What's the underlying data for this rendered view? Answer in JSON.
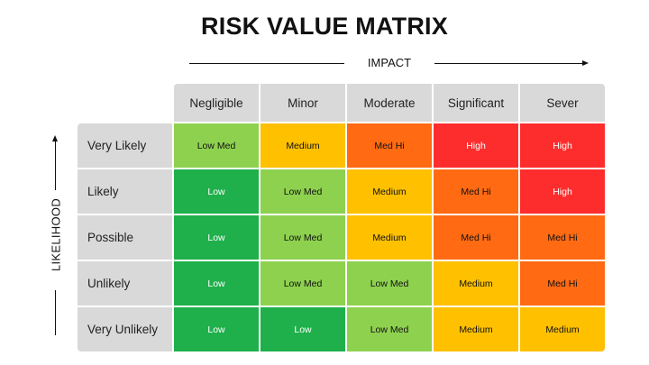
{
  "title": "RISK VALUE MATRIX",
  "impact_label": "IMPACT",
  "likelihood_label": "LIKELIHOOD",
  "columns": [
    "Negligible",
    "Minor",
    "Moderate",
    "Significant",
    "Sever"
  ],
  "rows": [
    {
      "label": "Very Likely",
      "cells": [
        "Low Med",
        "Medium",
        "Med Hi",
        "High",
        "High"
      ]
    },
    {
      "label": "Likely",
      "cells": [
        "Low",
        "Low Med",
        "Medium",
        "Med Hi",
        "High"
      ]
    },
    {
      "label": "Possible",
      "cells": [
        "Low",
        "Low Med",
        "Medium",
        "Med Hi",
        "Med Hi"
      ]
    },
    {
      "label": "Unlikely",
      "cells": [
        "Low",
        "Low Med",
        "Low Med",
        "Medium",
        "Med Hi"
      ]
    },
    {
      "label": "Very Unlikely",
      "cells": [
        "Low",
        "Low",
        "Low Med",
        "Medium",
        "Medium"
      ]
    }
  ],
  "level_colors": {
    "Low": "#1fb04b",
    "Low Med": "#8ed14f",
    "Medium": "#ffc000",
    "Med Hi": "#ff6a13",
    "High": "#fe2d2d"
  },
  "header_color": "#d9d9d9"
}
